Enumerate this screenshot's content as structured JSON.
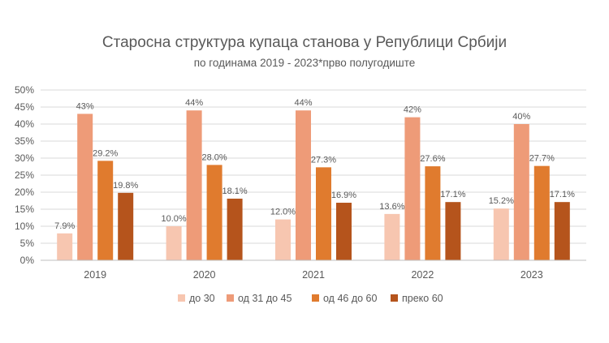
{
  "chart_data": {
    "type": "bar",
    "title": "Старосна структура купаца станова у Републици Србији",
    "subtitle": "по годинама 2019 - 2023*прво полугодиште",
    "categories": [
      "2019",
      "2020",
      "2021",
      "2022",
      "2023"
    ],
    "ylim": [
      0,
      50
    ],
    "y_ticks": [
      "0%",
      "5%",
      "10%",
      "15%",
      "20%",
      "25%",
      "30%",
      "35%",
      "40%",
      "45%",
      "50%"
    ],
    "grid": true,
    "legend_position": "bottom",
    "series": [
      {
        "name": "до 30",
        "color": "#f7c6b0",
        "values": [
          7.9,
          10.0,
          12.0,
          13.6,
          15.2
        ],
        "labels": [
          "7.9%",
          "10.0%",
          "12.0%",
          "13.6%",
          "15.2%"
        ]
      },
      {
        "name": "од 31 до 45",
        "color": "#ee9b78",
        "values": [
          43,
          44,
          44,
          42,
          40
        ],
        "labels": [
          "43%",
          "44%",
          "44%",
          "42%",
          "40%"
        ]
      },
      {
        "name": "од 46 до 60",
        "color": "#e07b2e",
        "values": [
          29.2,
          28.0,
          27.3,
          27.6,
          27.7
        ],
        "labels": [
          "29.2%",
          "28.0%",
          "27.3%",
          "27.6%",
          "27.7%"
        ]
      },
      {
        "name": "преко 60",
        "color": "#b5541c",
        "values": [
          19.8,
          18.1,
          16.9,
          17.1,
          17.1
        ],
        "labels": [
          "19.8%",
          "18.1%",
          "16.9%",
          "17.1%",
          "17.1%"
        ]
      }
    ]
  }
}
